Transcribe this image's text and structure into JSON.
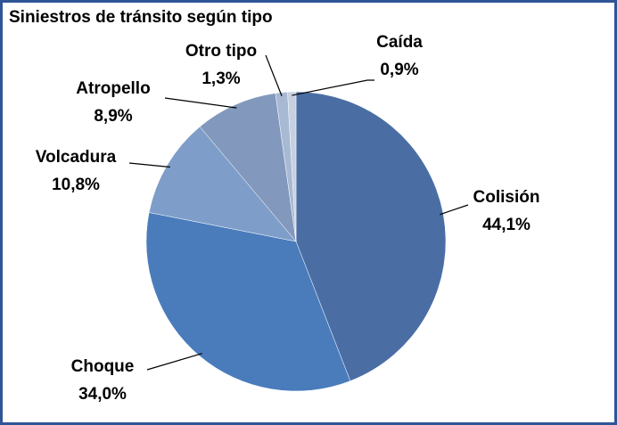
{
  "chart_data": {
    "type": "pie",
    "title": "Siniestros de tránsito según tipo",
    "categories": [
      "Colisión",
      "Choque",
      "Volcadura",
      "Atropello",
      "Otro tipo",
      "Caída"
    ],
    "values": [
      44.1,
      34.0,
      10.8,
      8.9,
      1.3,
      0.9
    ],
    "value_labels": [
      "44,1%",
      "34,0%",
      "10,8%",
      "8,9%",
      "1,3%",
      "0,9%"
    ],
    "colors": [
      "#4a6ea4",
      "#4a7cbc",
      "#7e9dc9",
      "#8299bd",
      "#a8b9d3",
      "#c6d0e0"
    ]
  }
}
